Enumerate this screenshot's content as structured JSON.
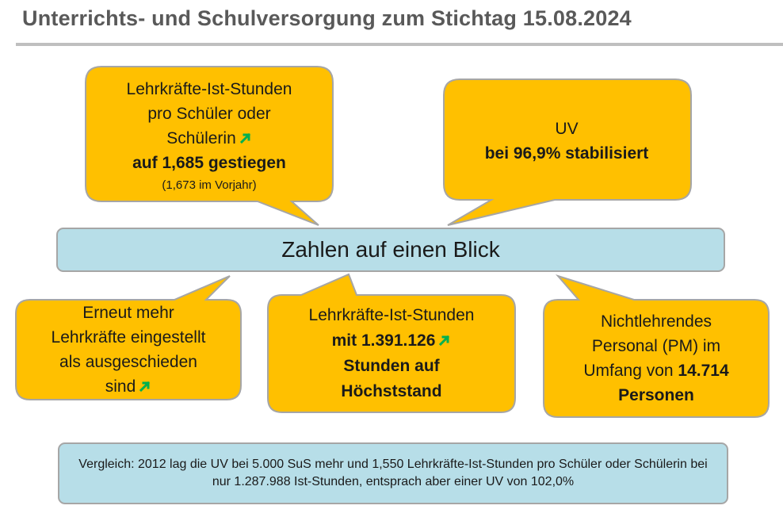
{
  "header": {
    "title": "Unterrichts- und Schulversorgung zum Stichtag 15.08.2024"
  },
  "center": {
    "label": "Zahlen auf einen Blick"
  },
  "bubble_ist_pro_schueler": {
    "line1": "Lehrkräfte-Ist-Stunden",
    "line2": "pro Schüler oder",
    "line3": "Schülerin",
    "bold": "auf 1,685 gestiegen",
    "note": "(1,673 im Vorjahr)"
  },
  "bubble_uv": {
    "line1": "UV",
    "bold": "bei 96,9% stabilisiert"
  },
  "bubble_lehrkraefte": {
    "line1": "Erneut mehr",
    "line2": "Lehrkräfte eingestellt",
    "line3": "als ausgeschieden",
    "line4": "sind"
  },
  "bubble_ist_stunden": {
    "line1": "Lehrkräfte-Ist-Stunden",
    "bold1": "mit 1.391.126",
    "bold2": "Stunden auf",
    "bold3": "Höchststand"
  },
  "bubble_personal": {
    "line1": "Nichtlehrendes",
    "line2": "Personal (PM) im",
    "line3": "Umfang von",
    "bold1": "14.714",
    "bold2": "Personen"
  },
  "footer_note": {
    "text": "Vergleich: 2012 lag die UV bei 5.000 SuS mehr und 1,550 Lehrkräfte-Ist-Stunden pro Schüler oder Schülerin bei nur 1.287.988 Ist-Stunden, entsprach aber einer UV von 102,0%"
  },
  "colors": {
    "bubble_fill": "#FFC000",
    "bubble_stroke": "#A6A6A6",
    "bar_fill": "#B7DEE8",
    "arrow": "#00B050",
    "title": "#595959"
  },
  "icons": {
    "trend": "arrow-up-right-icon"
  }
}
